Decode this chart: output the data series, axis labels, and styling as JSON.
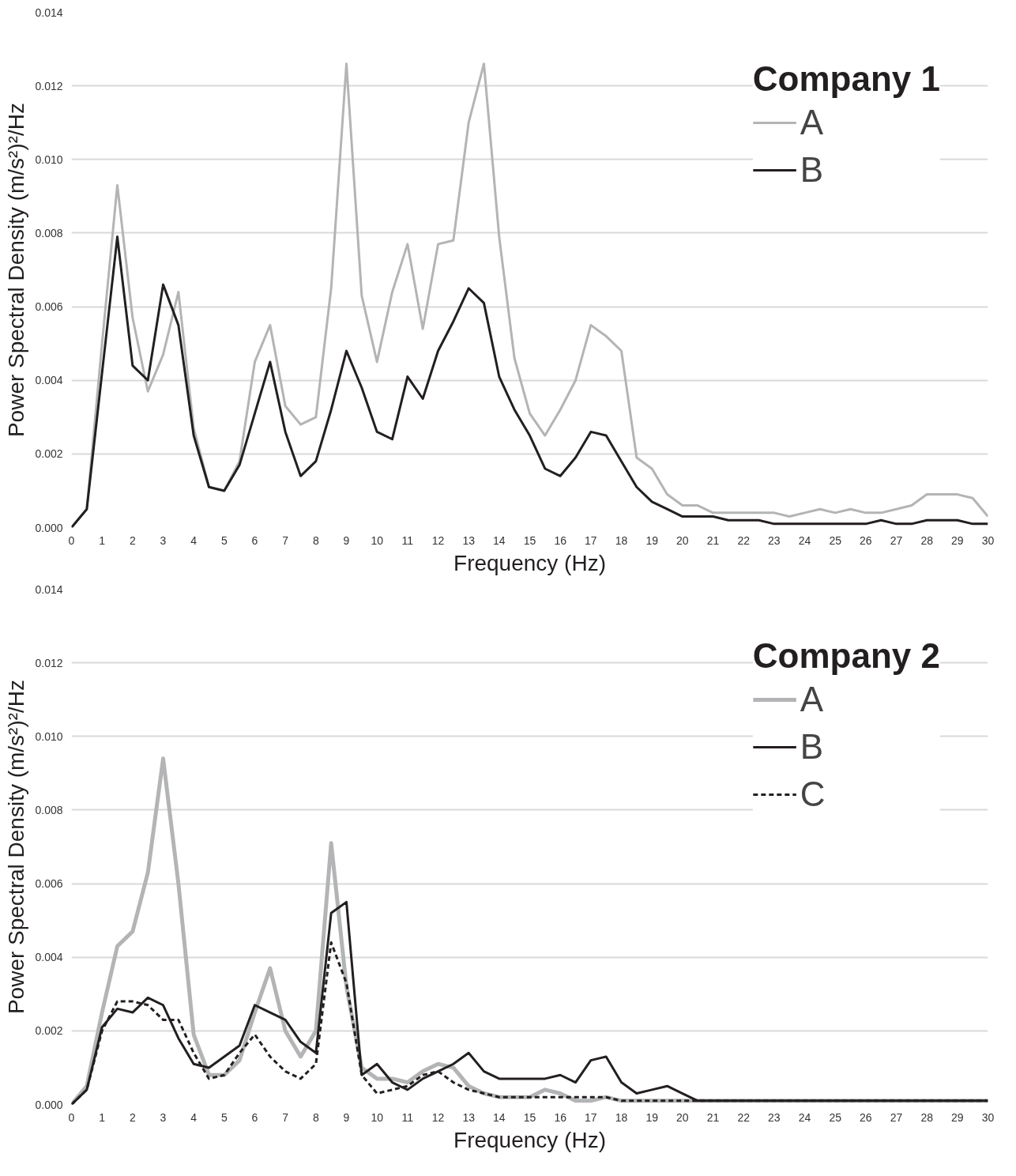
{
  "chart_data": [
    {
      "type": "line",
      "legend_title": "Company 1",
      "xlabel": "Frequency (Hz)",
      "ylabel": "Power Spectral Density (m/s²)²/Hz",
      "legend": "top right",
      "grid": "y",
      "x": [
        0,
        0.5,
        1,
        1.5,
        2,
        2.5,
        3,
        3.5,
        4,
        4.5,
        5,
        5.5,
        6,
        6.5,
        7,
        7.5,
        8,
        8.5,
        9,
        9.5,
        10,
        10.5,
        11,
        11.5,
        12,
        12.5,
        13,
        13.5,
        14,
        14.5,
        15,
        15.5,
        16,
        16.5,
        17,
        17.5,
        18,
        18.5,
        19,
        19.5,
        20,
        20.5,
        21,
        21.5,
        22,
        22.5,
        23,
        23.5,
        24,
        24.5,
        25,
        25.5,
        26,
        26.5,
        27,
        27.5,
        28,
        28.5,
        29,
        29.5,
        30
      ],
      "xlim": [
        0,
        30
      ],
      "xticks": [
        0,
        1,
        2,
        3,
        4,
        5,
        6,
        7,
        8,
        9,
        10,
        11,
        12,
        13,
        14,
        15,
        16,
        17,
        18,
        19,
        20,
        21,
        22,
        23,
        24,
        25,
        26,
        27,
        28,
        29,
        30
      ],
      "ylim": [
        0,
        0.014
      ],
      "yticks": [
        {
          "value": 0,
          "label": "0.000"
        },
        {
          "value": 0.002,
          "label": "0.002"
        },
        {
          "value": 0.004,
          "label": "0.004"
        },
        {
          "value": 0.006,
          "label": "0.006"
        },
        {
          "value": 0.008,
          "label": "0.008"
        },
        {
          "value": 0.01,
          "label": "0.010"
        },
        {
          "value": 0.012,
          "label": "0.012"
        },
        {
          "value": 0.014,
          "label": "0.014"
        }
      ],
      "series": [
        {
          "name": "A",
          "color": "#b3b4b6",
          "line_style": "solid",
          "values": [
            0,
            0.0005,
            0.005,
            0.0093,
            0.0057,
            0.0037,
            0.0047,
            0.0064,
            0.0027,
            0.0011,
            0.001,
            0.0018,
            0.0045,
            0.0055,
            0.0033,
            0.0028,
            0.003,
            0.0065,
            0.0126,
            0.0063,
            0.0045,
            0.0064,
            0.0077,
            0.0054,
            0.0077,
            0.0078,
            0.011,
            0.0126,
            0.0079,
            0.0046,
            0.0031,
            0.0025,
            0.0032,
            0.004,
            0.0055,
            0.0052,
            0.0048,
            0.0019,
            0.0016,
            0.0009,
            0.0006,
            0.0006,
            0.0004,
            0.0004,
            0.0004,
            0.0004,
            0.0004,
            0.0003,
            0.0004,
            0.0005,
            0.0004,
            0.0005,
            0.0004,
            0.0004,
            0.0005,
            0.0006,
            0.0009,
            0.0009,
            0.0009,
            0.0008,
            0.0003
          ]
        },
        {
          "name": "B",
          "color": "#231f20",
          "line_style": "solid",
          "values": [
            0,
            0.0005,
            0.0042,
            0.0079,
            0.0044,
            0.004,
            0.0066,
            0.0055,
            0.0025,
            0.0011,
            0.001,
            0.0017,
            0.0031,
            0.0045,
            0.0026,
            0.0014,
            0.0018,
            0.0032,
            0.0048,
            0.0038,
            0.0026,
            0.0024,
            0.0041,
            0.0035,
            0.0048,
            0.0056,
            0.0065,
            0.0061,
            0.0041,
            0.0032,
            0.0025,
            0.0016,
            0.0014,
            0.0019,
            0.0026,
            0.0025,
            0.0018,
            0.0011,
            0.0007,
            0.0005,
            0.0003,
            0.0003,
            0.0003,
            0.0002,
            0.0002,
            0.0002,
            0.0001,
            0.0001,
            0.0001,
            0.0001,
            0.0001,
            0.0001,
            0.0001,
            0.0002,
            0.0001,
            0.0001,
            0.0002,
            0.0002,
            0.0002,
            0.0001,
            0.0001
          ]
        }
      ]
    },
    {
      "type": "line",
      "legend_title": "Company 2",
      "xlabel": "Frequency (Hz)",
      "ylabel": "Power Spectral Density (m/s²)²/Hz",
      "legend": "top right",
      "grid": "y",
      "x": [
        0,
        0.5,
        1,
        1.5,
        2,
        2.5,
        3,
        3.5,
        4,
        4.5,
        5,
        5.5,
        6,
        6.5,
        7,
        7.5,
        8,
        8.5,
        9,
        9.5,
        10,
        10.5,
        11,
        11.5,
        12,
        12.5,
        13,
        13.5,
        14,
        14.5,
        15,
        15.5,
        16,
        16.5,
        17,
        17.5,
        18,
        18.5,
        19,
        19.5,
        20,
        20.5,
        21,
        21.5,
        22,
        22.5,
        23,
        23.5,
        24,
        24.5,
        25,
        25.5,
        26,
        26.5,
        27,
        27.5,
        28,
        28.5,
        29,
        29.5,
        30
      ],
      "xlim": [
        0,
        30
      ],
      "xticks": [
        0,
        1,
        2,
        3,
        4,
        5,
        6,
        7,
        8,
        9,
        10,
        11,
        12,
        13,
        14,
        15,
        16,
        17,
        18,
        19,
        20,
        21,
        22,
        23,
        24,
        25,
        26,
        27,
        28,
        29,
        30
      ],
      "ylim": [
        0,
        0.014
      ],
      "yticks": [
        {
          "value": 0,
          "label": "0.000"
        },
        {
          "value": 0.002,
          "label": "0.002"
        },
        {
          "value": 0.004,
          "label": "0.004"
        },
        {
          "value": 0.006,
          "label": "0.006"
        },
        {
          "value": 0.008,
          "label": "0.008"
        },
        {
          "value": 0.01,
          "label": "0.010"
        },
        {
          "value": 0.012,
          "label": "0.012"
        },
        {
          "value": 0.014,
          "label": "0.014"
        }
      ],
      "series": [
        {
          "name": "A",
          "color": "#b3b4b6",
          "line_style": "solid",
          "values": [
            0,
            0.0005,
            0.0025,
            0.0043,
            0.0047,
            0.0063,
            0.0094,
            0.006,
            0.0019,
            0.0008,
            0.0008,
            0.0012,
            0.0025,
            0.0037,
            0.002,
            0.0013,
            0.002,
            0.0071,
            0.0032,
            0.001,
            0.0007,
            0.0007,
            0.0006,
            0.0009,
            0.0011,
            0.001,
            0.0005,
            0.0003,
            0.0002,
            0.0002,
            0.0002,
            0.0004,
            0.0003,
            0.0001,
            0.0001,
            0.0002,
            0.0001,
            0.0001,
            0.0001,
            0.0001,
            0.0001,
            0.0001,
            0.0001,
            0.0001,
            0.0001,
            0.0001,
            0.0001,
            0.0001,
            0.0001,
            0.0001,
            0.0001,
            0.0001,
            0.0001,
            0.0001,
            0.0001,
            0.0001,
            0.0001,
            0.0001,
            0.0001,
            0.0001,
            0.0001
          ]
        },
        {
          "name": "B",
          "color": "#231f20",
          "line_style": "solid",
          "values": [
            0,
            0.0004,
            0.0021,
            0.0026,
            0.0025,
            0.0029,
            0.0027,
            0.0018,
            0.0011,
            0.001,
            0.0013,
            0.0016,
            0.0027,
            0.0025,
            0.0023,
            0.0017,
            0.0014,
            0.0052,
            0.0055,
            0.0008,
            0.0011,
            0.0006,
            0.0004,
            0.0007,
            0.0009,
            0.0011,
            0.0014,
            0.0009,
            0.0007,
            0.0007,
            0.0007,
            0.0007,
            0.0008,
            0.0006,
            0.0012,
            0.0013,
            0.0006,
            0.0003,
            0.0004,
            0.0005,
            0.0003,
            0.0001,
            0.0001,
            0.0001,
            0.0001,
            0.0001,
            0.0001,
            0.0001,
            0.0001,
            0.0001,
            0.0001,
            0.0001,
            0.0001,
            0.0001,
            0.0001,
            0.0001,
            0.0001,
            0.0001,
            0.0001,
            0.0001,
            0.0001
          ]
        },
        {
          "name": "C",
          "color": "#231f20",
          "line_style": "dashed",
          "values": [
            0,
            0.0004,
            0.002,
            0.0028,
            0.0028,
            0.0027,
            0.0023,
            0.0023,
            0.0014,
            0.0007,
            0.0008,
            0.0014,
            0.0019,
            0.0013,
            0.0009,
            0.0007,
            0.0011,
            0.0044,
            0.0033,
            0.0008,
            0.0003,
            0.0004,
            0.0005,
            0.0008,
            0.0009,
            0.0006,
            0.0004,
            0.0003,
            0.0002,
            0.0002,
            0.0002,
            0.0002,
            0.0002,
            0.0002,
            0.0002,
            0.0002,
            0.0001,
            0.0001,
            0.0001,
            0.0001,
            0.0001,
            0.0001,
            0.0001,
            0.0001,
            0.0001,
            0.0001,
            0.0001,
            0.0001,
            0.0001,
            0.0001,
            0.0001,
            0.0001,
            0.0001,
            0.0001,
            0.0001,
            0.0001,
            0.0001,
            0.0001,
            0.0001,
            0.0001,
            0.0001
          ]
        }
      ]
    }
  ]
}
